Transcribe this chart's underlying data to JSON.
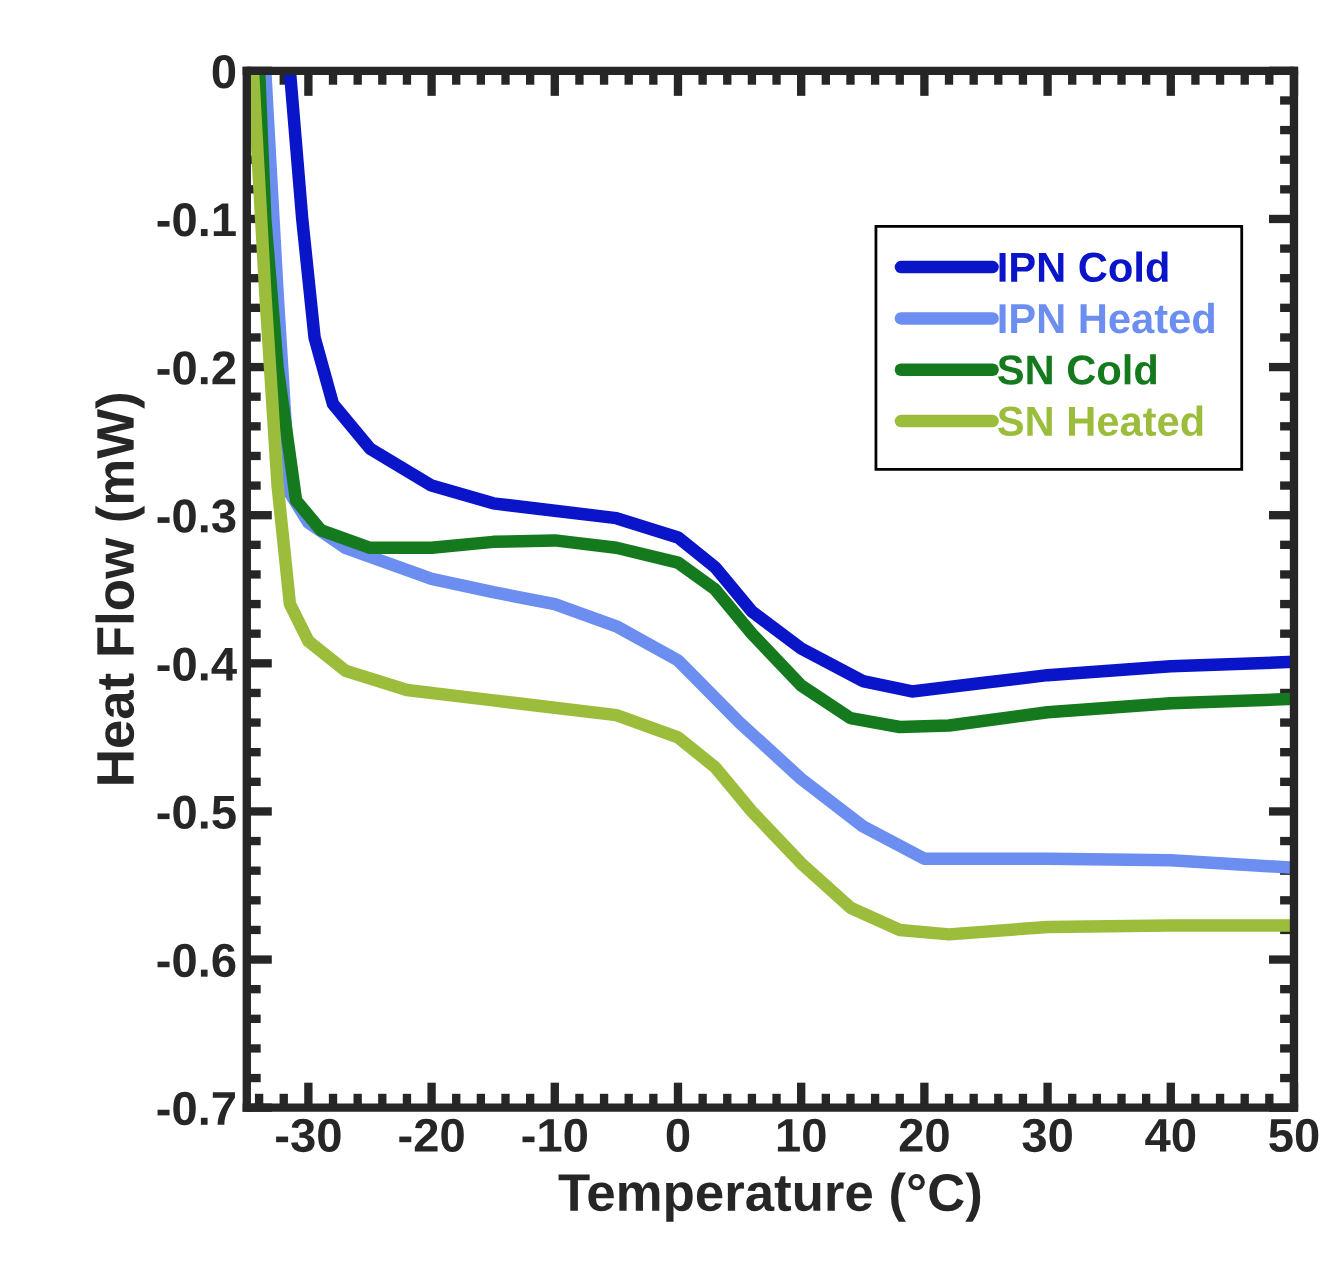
{
  "chart_data": {
    "type": "line",
    "xlabel": "Temperature (°C)",
    "ylabel": "Heat Flow (mW)",
    "xlim": [
      -35,
      50
    ],
    "ylim": [
      -0.7,
      0
    ],
    "xticks": [
      {
        "value": -30,
        "label": "-30"
      },
      {
        "value": -20,
        "label": "-20"
      },
      {
        "value": -10,
        "label": "-10"
      },
      0,
      10,
      20,
      30,
      40,
      50
    ],
    "yticks": [
      {
        "value": -0.7,
        "label": "-0.7"
      },
      {
        "value": -0.6,
        "label": "-0.6"
      },
      {
        "value": -0.5,
        "label": "-0.5"
      },
      {
        "value": -0.4,
        "label": "-0.4"
      },
      {
        "value": -0.3,
        "label": "-0.3"
      },
      {
        "value": -0.2,
        "label": "-0.2"
      },
      {
        "value": -0.1,
        "label": "-0.1"
      },
      0
    ],
    "grid": false,
    "legend": "top right",
    "marker": "none",
    "line_style": "solid",
    "series": [
      {
        "name": "IPN Cold",
        "color": "#0a14c8",
        "x": [
          -31.5,
          -30.5,
          -29.5,
          -28,
          -25,
          -20,
          -15,
          -10,
          -5,
          0,
          3,
          6,
          10,
          15,
          19,
          25,
          30,
          40,
          50
        ],
        "values": [
          0,
          -0.1,
          -0.18,
          -0.225,
          -0.255,
          -0.28,
          -0.292,
          -0.297,
          -0.302,
          -0.315,
          -0.335,
          -0.365,
          -0.39,
          -0.412,
          -0.419,
          -0.413,
          -0.408,
          -0.402,
          -0.399
        ]
      },
      {
        "name": "IPN Heated",
        "color": "#6b8ef0",
        "x": [
          -33.5,
          -32.5,
          -31.5,
          -30,
          -27,
          -20,
          -15,
          -10,
          -5,
          0,
          5,
          10,
          15,
          20,
          30,
          40,
          50
        ],
        "values": [
          0,
          -0.15,
          -0.285,
          -0.305,
          -0.322,
          -0.343,
          -0.352,
          -0.36,
          -0.375,
          -0.398,
          -0.44,
          -0.478,
          -0.51,
          -0.532,
          -0.532,
          -0.533,
          -0.538
        ]
      },
      {
        "name": "SN Cold",
        "color": "#157a1e",
        "x": [
          -34,
          -33.5,
          -32.5,
          -31,
          -29,
          -25,
          -20,
          -15,
          -10,
          -5,
          0,
          3,
          6,
          10,
          14,
          18,
          22,
          30,
          40,
          50
        ],
        "values": [
          0,
          -0.1,
          -0.2,
          -0.29,
          -0.31,
          -0.322,
          -0.322,
          -0.318,
          -0.317,
          -0.322,
          -0.332,
          -0.35,
          -0.38,
          -0.415,
          -0.437,
          -0.443,
          -0.442,
          -0.433,
          -0.427,
          -0.424
        ]
      },
      {
        "name": "SN Heated",
        "color": "#9cbd3c",
        "x": [
          -34.5,
          -33.5,
          -32.5,
          -31.5,
          -30,
          -27,
          -22,
          -15,
          -10,
          -5,
          0,
          3,
          6,
          10,
          14,
          18,
          22,
          30,
          40,
          50
        ],
        "values": [
          0,
          -0.15,
          -0.28,
          -0.36,
          -0.385,
          -0.405,
          -0.418,
          -0.425,
          -0.43,
          -0.435,
          -0.45,
          -0.47,
          -0.5,
          -0.535,
          -0.565,
          -0.58,
          -0.583,
          -0.578,
          -0.577,
          -0.577
        ]
      }
    ]
  }
}
